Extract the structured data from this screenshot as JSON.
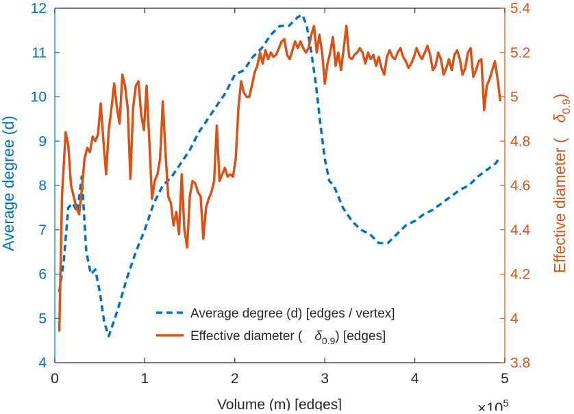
{
  "chart_data": {
    "type": "line",
    "xlabel": "Volume (m) [edges]",
    "x_exponent_label": "×10",
    "x_exponent_power": "5",
    "xlim": [
      0,
      5
    ],
    "x_ticks": [
      0,
      1,
      2,
      3,
      4,
      5
    ],
    "y_left": {
      "label": "Average degree (d)",
      "lim": [
        4,
        12
      ],
      "ticks": [
        4,
        5,
        6,
        7,
        8,
        9,
        10,
        11,
        12
      ],
      "color": "#0072BD"
    },
    "y_right": {
      "label_main": "Effective diameter (",
      "label_symbol": "δ",
      "label_sub": "0.9",
      "label_close": ")",
      "lim": [
        3.8,
        5.4
      ],
      "ticks": [
        "3.8",
        "4",
        "4.2",
        "4.4",
        "4.6",
        "4.8",
        "5",
        "5.2",
        "5.4"
      ],
      "color": "#D95319"
    },
    "legend": {
      "placement": "bottom-center",
      "entries": [
        {
          "label": "Average degree (d) [edges / vertex]"
        },
        {
          "label_main": "Effective diameter (",
          "label_symbol": "δ",
          "label_sub": "0.9",
          "label_close": ") [edges]"
        }
      ]
    },
    "series": [
      {
        "name": "Average degree (d) [edges / vertex]",
        "axis": "left",
        "style": "dashed",
        "color": "#0072BD",
        "x": [
          0.05,
          0.1,
          0.15,
          0.2,
          0.25,
          0.3,
          0.35,
          0.4,
          0.45,
          0.5,
          0.55,
          0.6,
          0.7,
          0.8,
          0.9,
          1.0,
          1.1,
          1.2,
          1.3,
          1.4,
          1.5,
          1.6,
          1.7,
          1.8,
          1.9,
          2.0,
          2.1,
          2.2,
          2.3,
          2.4,
          2.5,
          2.6,
          2.7,
          2.75,
          2.8,
          2.85,
          2.9,
          2.95,
          3.0,
          3.05,
          3.1,
          3.2,
          3.3,
          3.4,
          3.5,
          3.6,
          3.7,
          3.8,
          3.9,
          4.0,
          4.1,
          4.2,
          4.3,
          4.4,
          4.5,
          4.6,
          4.7,
          4.8,
          4.9,
          4.95
        ],
        "y": [
          5.6,
          6.3,
          7.5,
          7.6,
          7.4,
          8.2,
          6.5,
          6.0,
          6.1,
          5.6,
          4.9,
          4.6,
          5.2,
          5.9,
          6.5,
          7.0,
          7.6,
          8.0,
          8.2,
          8.5,
          8.8,
          9.2,
          9.5,
          9.8,
          10.1,
          10.5,
          10.6,
          10.9,
          11.1,
          11.4,
          11.6,
          11.6,
          11.8,
          11.85,
          11.6,
          11.0,
          10.3,
          9.4,
          8.6,
          8.1,
          8.0,
          7.5,
          7.2,
          7.0,
          6.9,
          6.7,
          6.7,
          6.9,
          7.1,
          7.2,
          7.35,
          7.45,
          7.6,
          7.75,
          7.9,
          8.0,
          8.2,
          8.35,
          8.5,
          8.65
        ]
      },
      {
        "name": "Effective diameter (δ0.9) [edges]",
        "axis": "right",
        "style": "solid",
        "color": "#D95319",
        "x": [
          0.05,
          0.08,
          0.12,
          0.15,
          0.18,
          0.21,
          0.24,
          0.27,
          0.3,
          0.33,
          0.36,
          0.39,
          0.42,
          0.45,
          0.48,
          0.51,
          0.54,
          0.57,
          0.6,
          0.63,
          0.66,
          0.69,
          0.72,
          0.75,
          0.78,
          0.81,
          0.84,
          0.87,
          0.9,
          0.93,
          0.96,
          0.99,
          1.02,
          1.05,
          1.08,
          1.11,
          1.14,
          1.17,
          1.2,
          1.23,
          1.26,
          1.29,
          1.32,
          1.35,
          1.38,
          1.41,
          1.44,
          1.47,
          1.5,
          1.53,
          1.56,
          1.59,
          1.62,
          1.65,
          1.68,
          1.71,
          1.74,
          1.77,
          1.8,
          1.83,
          1.86,
          1.89,
          1.92,
          1.95,
          1.98,
          2.01,
          2.04,
          2.07,
          2.1,
          2.13,
          2.16,
          2.19,
          2.22,
          2.25,
          2.28,
          2.31,
          2.34,
          2.37,
          2.4,
          2.43,
          2.46,
          2.49,
          2.52,
          2.55,
          2.58,
          2.61,
          2.64,
          2.67,
          2.7,
          2.73,
          2.76,
          2.79,
          2.82,
          2.85,
          2.88,
          2.91,
          2.94,
          2.97,
          3.0,
          3.03,
          3.06,
          3.09,
          3.12,
          3.15,
          3.18,
          3.21,
          3.24,
          3.27,
          3.3,
          3.33,
          3.36,
          3.39,
          3.42,
          3.45,
          3.48,
          3.51,
          3.54,
          3.57,
          3.6,
          3.63,
          3.66,
          3.69,
          3.72,
          3.75,
          3.78,
          3.81,
          3.84,
          3.87,
          3.9,
          3.93,
          3.96,
          3.99,
          4.02,
          4.05,
          4.08,
          4.11,
          4.14,
          4.17,
          4.2,
          4.23,
          4.26,
          4.29,
          4.32,
          4.35,
          4.38,
          4.41,
          4.44,
          4.47,
          4.5,
          4.53,
          4.56,
          4.59,
          4.62,
          4.65,
          4.68,
          4.71,
          4.74,
          4.77,
          4.8,
          4.83,
          4.86,
          4.89,
          4.92,
          4.95
        ],
        "y": [
          3.94,
          4.55,
          4.84,
          4.78,
          4.6,
          4.55,
          4.5,
          4.47,
          4.58,
          4.72,
          4.77,
          4.75,
          4.82,
          4.8,
          4.83,
          4.97,
          4.8,
          4.65,
          4.85,
          4.95,
          5.06,
          4.95,
          4.88,
          5.1,
          5.05,
          4.95,
          4.63,
          4.95,
          5.05,
          5.07,
          4.92,
          4.85,
          5.05,
          4.8,
          4.54,
          4.62,
          4.65,
          4.72,
          4.98,
          4.75,
          4.55,
          4.52,
          4.42,
          4.48,
          4.38,
          4.65,
          4.4,
          4.32,
          4.55,
          4.62,
          4.61,
          4.57,
          4.55,
          4.36,
          4.5,
          4.54,
          4.57,
          4.62,
          4.87,
          4.62,
          4.65,
          4.68,
          4.64,
          4.65,
          4.64,
          4.72,
          4.95,
          5.07,
          5.02,
          5.0,
          5.0,
          5.05,
          5.11,
          5.14,
          5.2,
          5.15,
          5.21,
          5.17,
          5.2,
          5.18,
          5.19,
          5.22,
          5.25,
          5.26,
          5.19,
          5.17,
          5.21,
          5.25,
          5.22,
          5.25,
          5.22,
          5.2,
          5.22,
          5.28,
          5.32,
          5.2,
          5.28,
          5.2,
          5.06,
          5.15,
          5.2,
          5.27,
          5.14,
          5.2,
          5.12,
          5.22,
          5.32,
          5.18,
          5.17,
          5.19,
          5.2,
          5.22,
          5.2,
          5.15,
          5.2,
          5.17,
          5.19,
          5.14,
          5.18,
          5.13,
          5.1,
          5.18,
          5.21,
          5.18,
          5.17,
          5.2,
          5.22,
          5.18,
          5.16,
          5.13,
          5.15,
          5.18,
          5.22,
          5.19,
          5.17,
          5.2,
          5.23,
          5.19,
          5.12,
          5.14,
          5.2,
          5.17,
          5.1,
          5.13,
          5.17,
          5.12,
          5.19,
          5.21,
          5.17,
          5.1,
          5.13,
          5.2,
          5.22,
          5.09,
          5.12,
          5.16,
          5.17,
          4.94,
          5.05,
          5.08,
          5.12,
          5.16,
          5.08,
          4.98
        ]
      }
    ]
  }
}
